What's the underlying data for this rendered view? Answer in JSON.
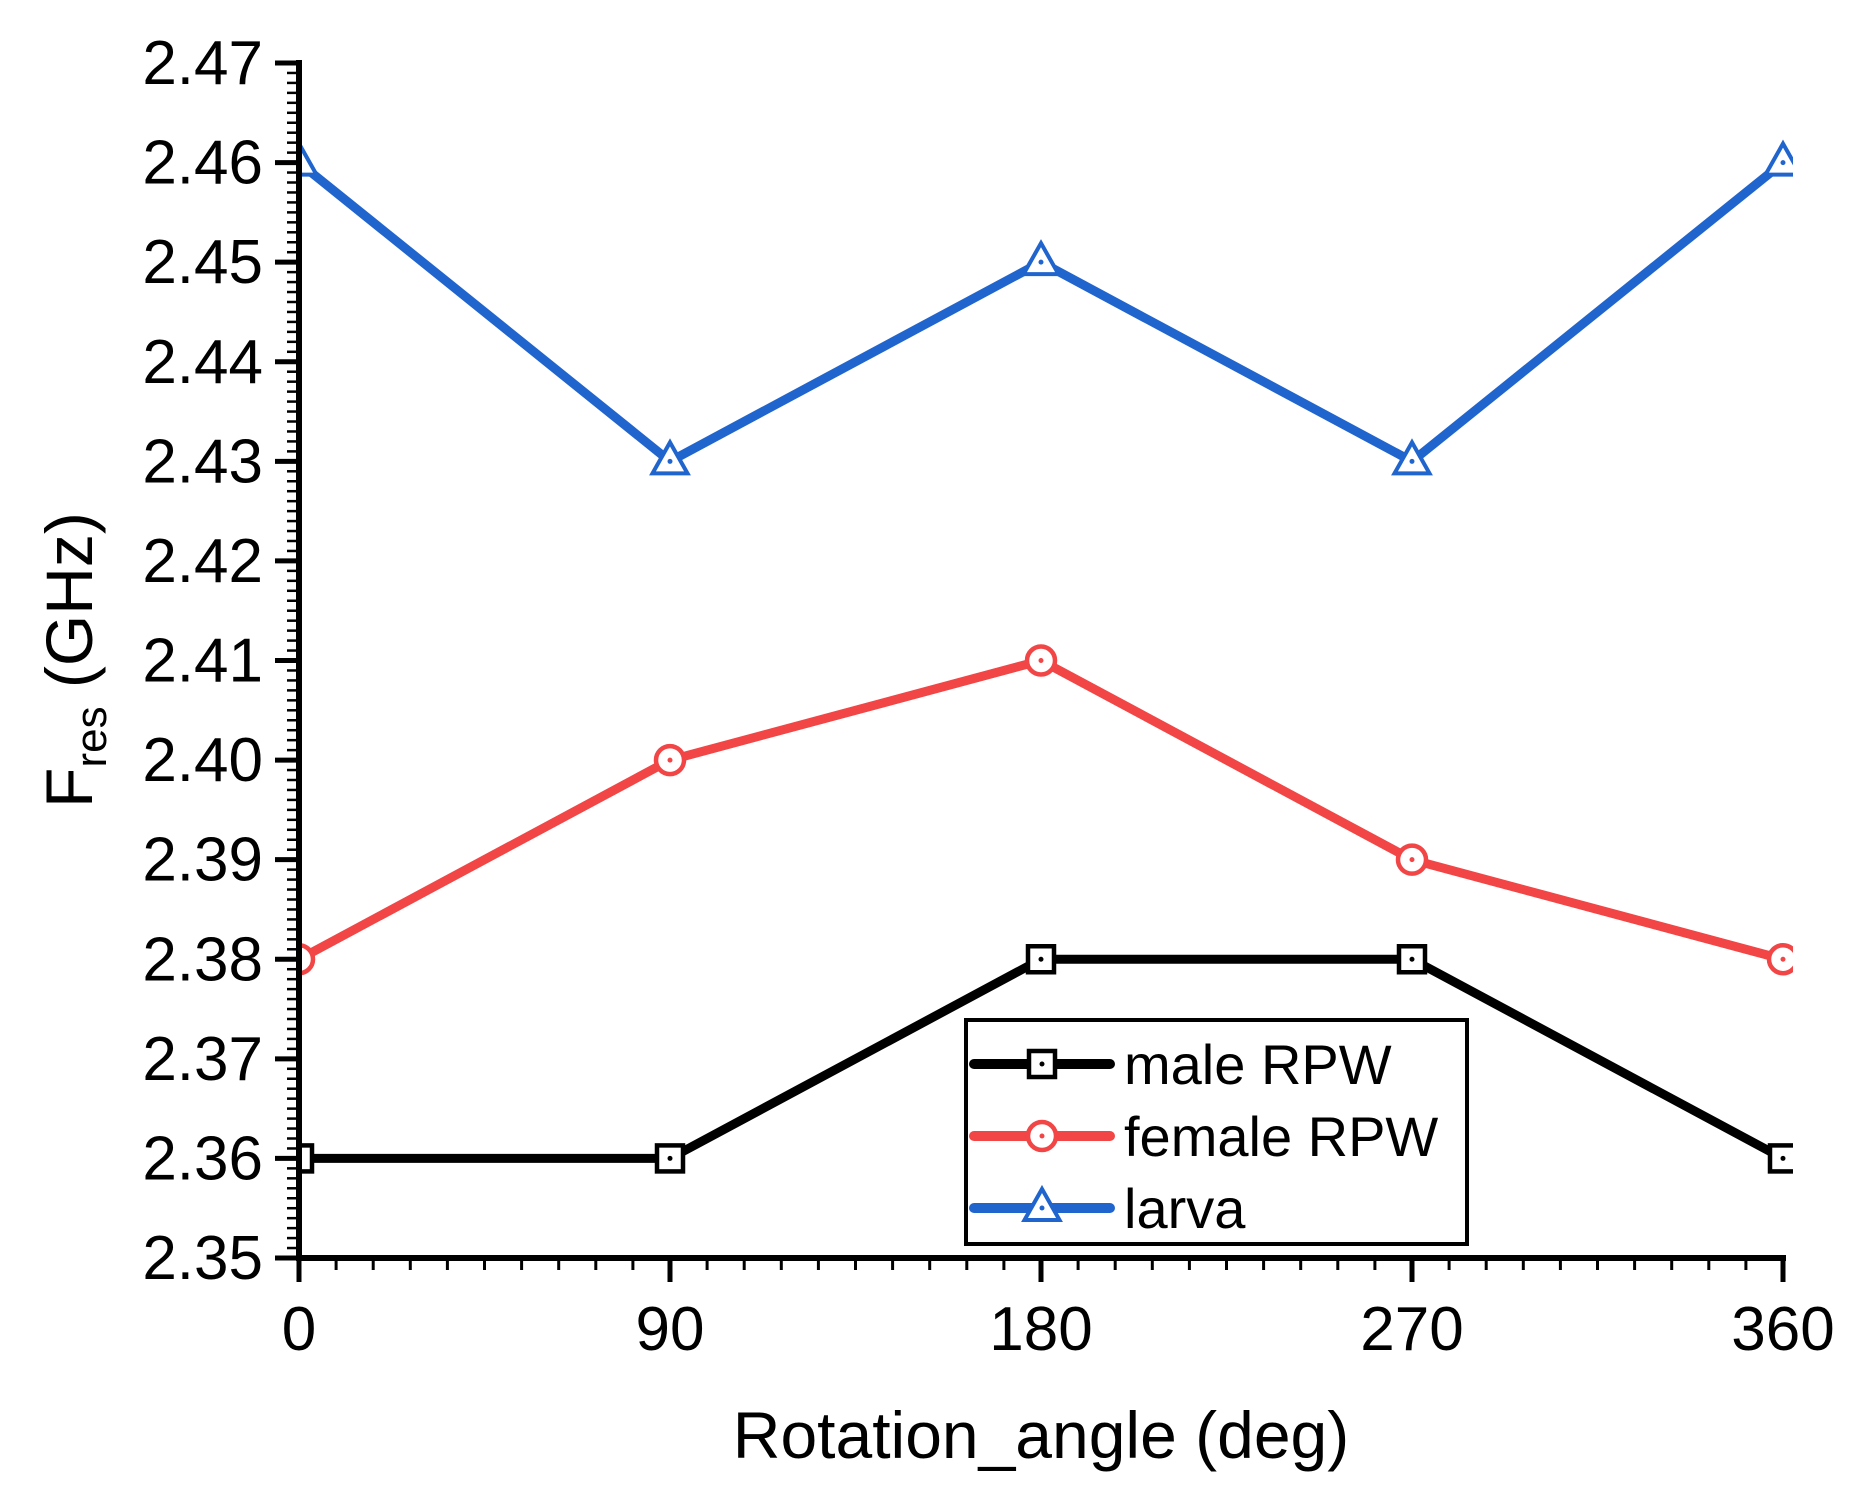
{
  "page": {
    "background": "#ffffff",
    "axis_color": "#000000"
  },
  "chart_data": {
    "type": "line",
    "title": "",
    "xlabel": "Rotation_angle (deg)",
    "ylabel": {
      "pre": "F",
      "sub": "res",
      "post": " (GHz)"
    },
    "x": [
      0,
      90,
      180,
      270,
      360
    ],
    "xlim": [
      0,
      360
    ],
    "ylim": [
      2.35,
      2.47
    ],
    "x_major_ticks": [
      0,
      90,
      180,
      270,
      360
    ],
    "x_minor_step": 9,
    "y_major_step": 0.01,
    "y_minor_step": 0.001,
    "y_tick_decimals": 2,
    "grid": false,
    "legend_position": "inside-bottom-right",
    "series": [
      {
        "name": "male RPW",
        "color": "#000000",
        "marker": "square",
        "values": [
          2.36,
          2.36,
          2.38,
          2.38,
          2.36
        ]
      },
      {
        "name": "female RPW",
        "color": "#F24545",
        "marker": "circle",
        "values": [
          2.38,
          2.4,
          2.41,
          2.39,
          2.38
        ]
      },
      {
        "name": "larva",
        "color": "#2065CE",
        "marker": "triangle",
        "values": [
          2.46,
          2.43,
          2.45,
          2.43,
          2.46
        ]
      }
    ]
  }
}
